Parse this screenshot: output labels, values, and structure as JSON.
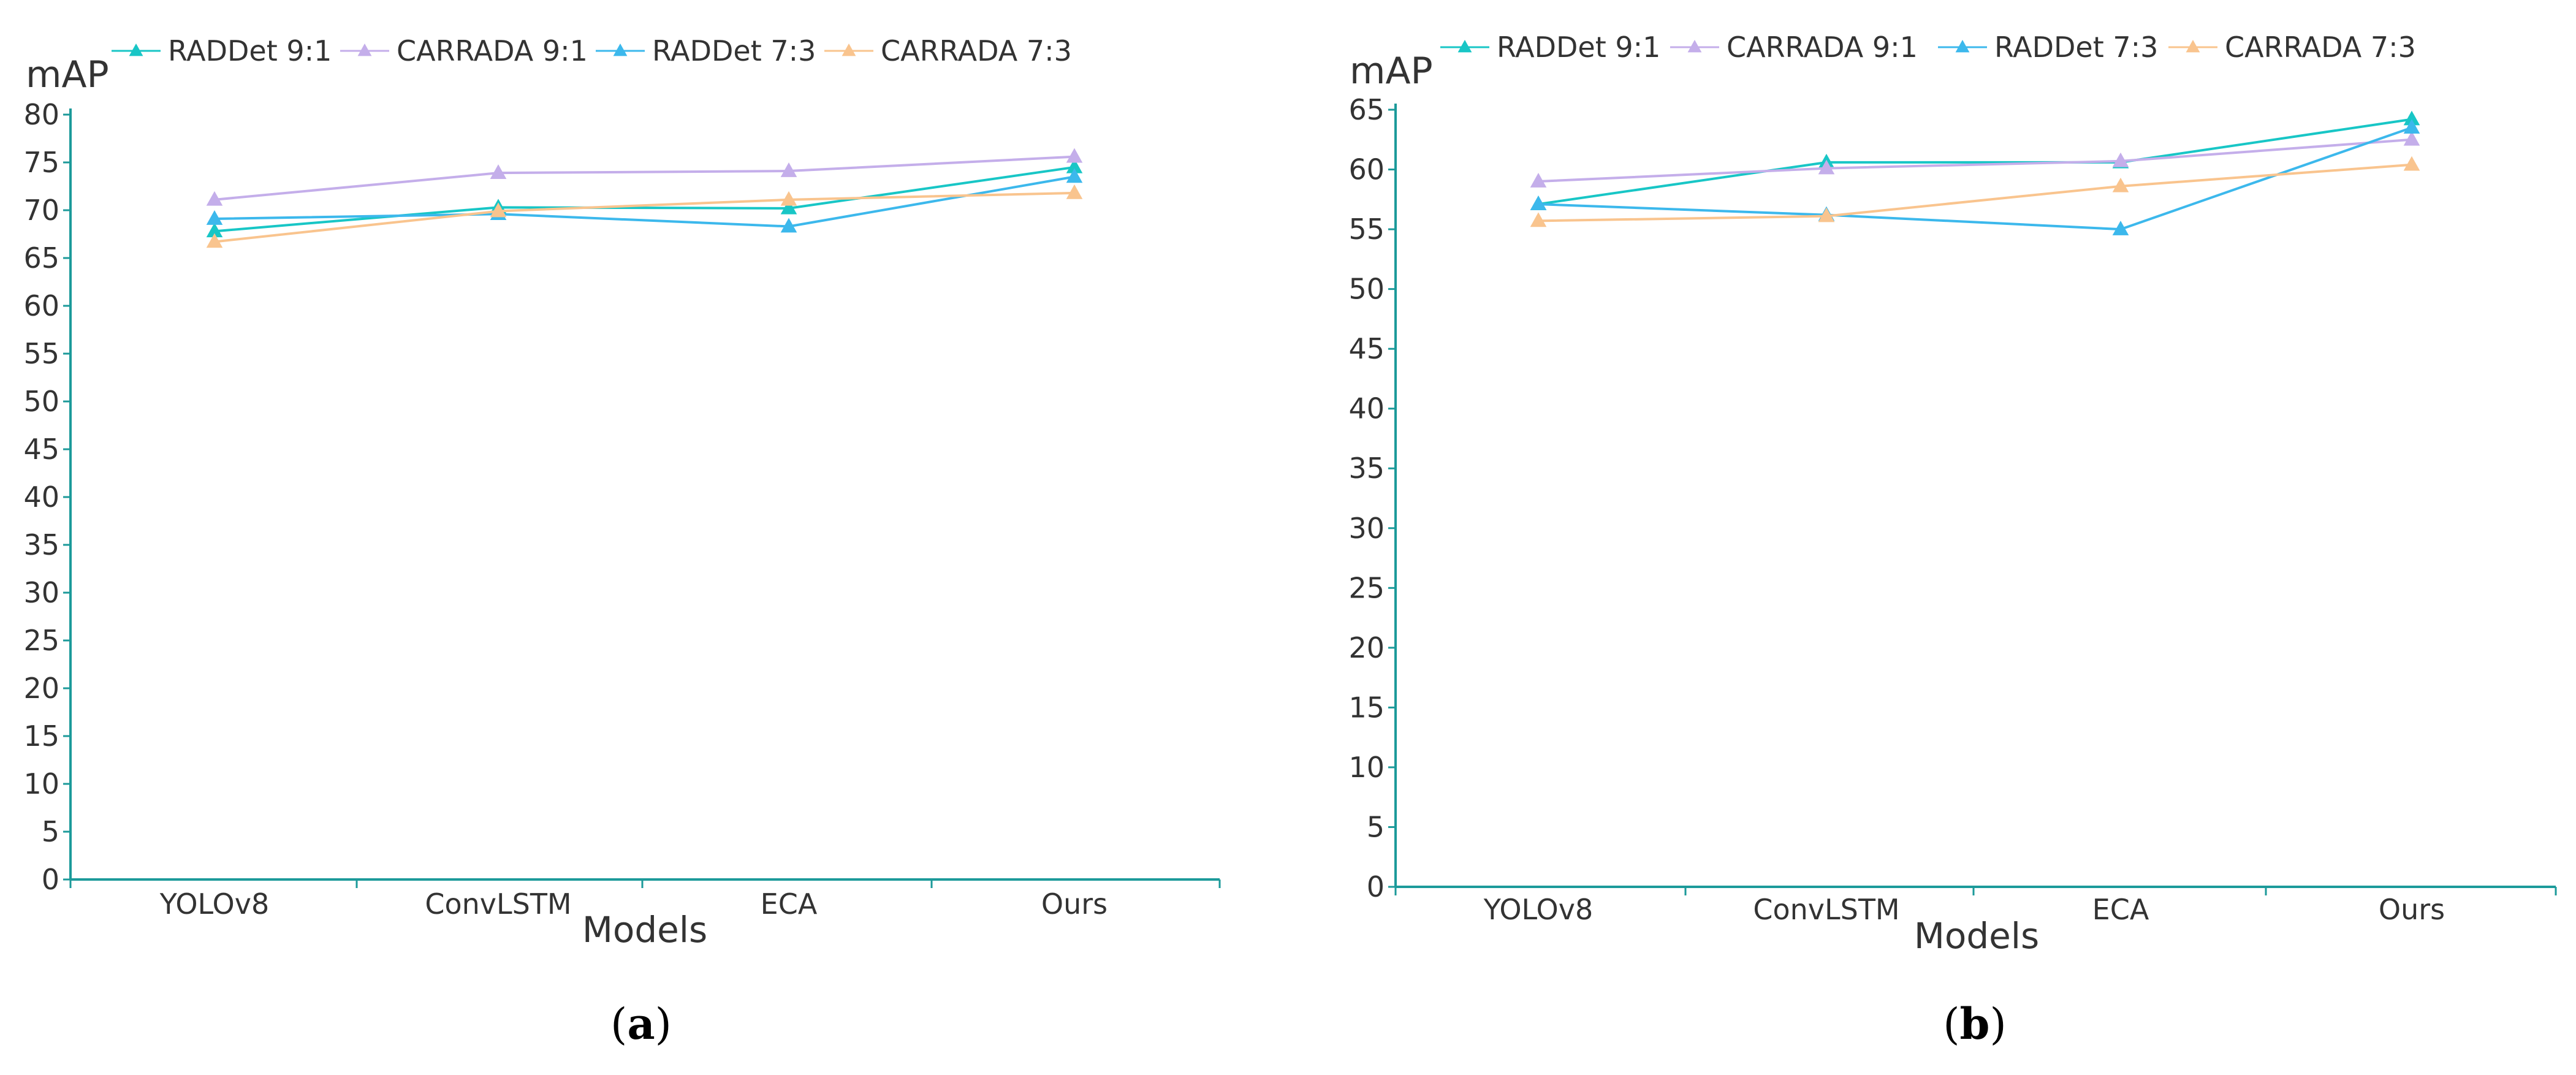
{
  "chart_data": [
    {
      "type": "line",
      "panel": "a",
      "caption_letter": "a",
      "ylabel": "mAP",
      "xlabel": "Models",
      "categories": [
        "YOLOv8",
        "ConvLSTM",
        "ECA",
        "Ours"
      ],
      "ylim": [
        0,
        80
      ],
      "ytick_step": 5,
      "yticks": [
        "0",
        "5",
        "10",
        "15",
        "20",
        "25",
        "30",
        "35",
        "40",
        "45",
        "50",
        "55",
        "60",
        "65",
        "70",
        "75",
        "80"
      ],
      "legend_position": "top",
      "series": [
        {
          "name": "RADDet 9:1",
          "color": "#18c6c6",
          "values": [
            67.8,
            70.3,
            70.2,
            74.5
          ]
        },
        {
          "name": "CARRADA 9:1",
          "color": "#c4aeea",
          "values": [
            71.1,
            73.9,
            74.1,
            75.6
          ]
        },
        {
          "name": "RADDet 7:3",
          "color": "#3cb8ec",
          "values": [
            69.1,
            69.6,
            68.3,
            73.5
          ]
        },
        {
          "name": "CARRADA 7:3",
          "color": "#f9c48e",
          "values": [
            66.7,
            69.9,
            71.1,
            71.8
          ]
        }
      ]
    },
    {
      "type": "line",
      "panel": "b",
      "caption_letter": "b",
      "ylabel": "mAP",
      "xlabel": "Models",
      "categories": [
        "YOLOv8",
        "ConvLSTM",
        "ECA",
        "Ours"
      ],
      "ylim": [
        0,
        65
      ],
      "ytick_step": 5,
      "yticks": [
        "0",
        "5",
        "10",
        "15",
        "20",
        "25",
        "30",
        "35",
        "40",
        "45",
        "50",
        "55",
        "60",
        "65"
      ],
      "legend_position": "top",
      "series": [
        {
          "name": "RADDet 9:1",
          "color": "#18c6c6",
          "values": [
            57.1,
            60.6,
            60.6,
            64.2
          ]
        },
        {
          "name": "CARRADA 9:1",
          "color": "#c4aeea",
          "values": [
            59.0,
            60.1,
            60.7,
            62.5
          ]
        },
        {
          "name": "RADDet 7:3",
          "color": "#3cb8ec",
          "values": [
            57.1,
            56.2,
            55.0,
            63.5
          ]
        },
        {
          "name": "CARRADA 7:3",
          "color": "#f9c48e",
          "values": [
            55.7,
            56.1,
            58.6,
            60.4
          ]
        }
      ]
    }
  ],
  "colors": {
    "axis": "#1c9a9a",
    "text": "#333333"
  }
}
